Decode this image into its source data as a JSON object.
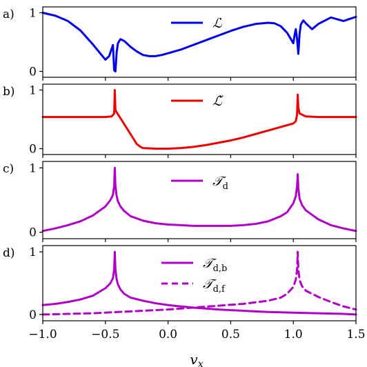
{
  "figure": {
    "xlabel": "v",
    "xlabel_sub": "x",
    "x_ticks": [
      "−1.0",
      "−0.5",
      "0.0",
      "0.5",
      "1.0",
      "1.5"
    ]
  },
  "chart_data": [
    {
      "type": "line",
      "panel_label": "a)",
      "xlim": [
        -1.0,
        1.5
      ],
      "ylim": [
        -0.1,
        1.1
      ],
      "y_ticks": [
        "0",
        "1"
      ],
      "grid": false,
      "legend": "top-center",
      "series": [
        {
          "name": "ℒ",
          "color": "#0000ee",
          "style": "solid",
          "x": [
            -1.0,
            -0.9,
            -0.8,
            -0.7,
            -0.6,
            -0.5,
            -0.47,
            -0.44,
            -0.43,
            -0.42,
            -0.41,
            -0.4,
            -0.38,
            -0.35,
            -0.3,
            -0.25,
            -0.2,
            -0.15,
            -0.1,
            -0.05,
            0.0,
            0.1,
            0.2,
            0.3,
            0.4,
            0.5,
            0.6,
            0.7,
            0.8,
            0.85,
            0.9,
            0.95,
            1.0,
            1.01,
            1.02,
            1.03,
            1.04,
            1.05,
            1.06,
            1.08,
            1.1,
            1.15,
            1.2,
            1.3,
            1.4,
            1.5
          ],
          "y": [
            1.0,
            0.95,
            0.86,
            0.7,
            0.46,
            0.2,
            0.26,
            0.45,
            0.02,
            0.0,
            0.33,
            0.48,
            0.55,
            0.52,
            0.42,
            0.34,
            0.28,
            0.26,
            0.26,
            0.28,
            0.31,
            0.37,
            0.45,
            0.53,
            0.61,
            0.69,
            0.76,
            0.81,
            0.83,
            0.82,
            0.77,
            0.66,
            0.48,
            0.62,
            0.72,
            0.55,
            0.3,
            0.64,
            0.8,
            0.87,
            0.82,
            0.72,
            0.81,
            0.92,
            0.86,
            0.93
          ]
        }
      ]
    },
    {
      "type": "line",
      "panel_label": "b)",
      "xlim": [
        -1.0,
        1.5
      ],
      "ylim": [
        -0.1,
        1.1
      ],
      "y_ticks": [
        "0",
        "1"
      ],
      "grid": false,
      "legend": "top-center",
      "series": [
        {
          "name": "ℒ̃",
          "color": "#ee0000",
          "style": "solid",
          "x": [
            -1.0,
            -0.8,
            -0.6,
            -0.5,
            -0.45,
            -0.43,
            -0.425,
            -0.42,
            -0.41,
            -0.38,
            -0.35,
            -0.3,
            -0.25,
            -0.22,
            -0.2,
            -0.1,
            0.0,
            0.1,
            0.2,
            0.3,
            0.4,
            0.5,
            0.6,
            0.7,
            0.8,
            0.9,
            1.0,
            1.02,
            1.03,
            1.035,
            1.04,
            1.05,
            1.1,
            1.2,
            1.3,
            1.4,
            1.5
          ],
          "y": [
            0.54,
            0.54,
            0.54,
            0.54,
            0.55,
            0.6,
            1.0,
            0.66,
            0.62,
            0.52,
            0.42,
            0.25,
            0.08,
            0.03,
            0.01,
            0.0,
            0.0,
            0.01,
            0.03,
            0.06,
            0.1,
            0.14,
            0.19,
            0.25,
            0.31,
            0.37,
            0.43,
            0.47,
            0.58,
            0.92,
            0.7,
            0.6,
            0.55,
            0.54,
            0.54,
            0.54,
            0.54
          ]
        }
      ]
    },
    {
      "type": "line",
      "panel_label": "c)",
      "xlim": [
        -1.0,
        1.5
      ],
      "ylim": [
        -0.1,
        1.1
      ],
      "y_ticks": [
        "0",
        "1"
      ],
      "grid": false,
      "legend": "top-center",
      "series": [
        {
          "name": "𝒯_d",
          "color": "#b000c8",
          "style": "solid",
          "x": [
            -1.0,
            -0.9,
            -0.8,
            -0.7,
            -0.6,
            -0.5,
            -0.46,
            -0.44,
            -0.43,
            -0.425,
            -0.42,
            -0.41,
            -0.4,
            -0.38,
            -0.35,
            -0.3,
            -0.2,
            -0.1,
            0.0,
            0.1,
            0.2,
            0.3,
            0.4,
            0.5,
            0.6,
            0.7,
            0.8,
            0.9,
            0.95,
            1.0,
            1.02,
            1.03,
            1.035,
            1.04,
            1.05,
            1.07,
            1.1,
            1.2,
            1.3,
            1.4,
            1.5
          ],
          "y": [
            0.02,
            0.06,
            0.11,
            0.17,
            0.26,
            0.4,
            0.5,
            0.58,
            0.72,
            1.0,
            0.72,
            0.56,
            0.48,
            0.4,
            0.33,
            0.25,
            0.18,
            0.14,
            0.12,
            0.11,
            0.1,
            0.1,
            0.1,
            0.1,
            0.11,
            0.13,
            0.17,
            0.25,
            0.31,
            0.45,
            0.56,
            0.72,
            0.9,
            0.68,
            0.52,
            0.42,
            0.34,
            0.2,
            0.11,
            0.06,
            0.02
          ]
        }
      ]
    },
    {
      "type": "line",
      "panel_label": "d)",
      "xlim": [
        -1.0,
        1.5
      ],
      "ylim": [
        -0.1,
        1.1
      ],
      "y_ticks": [
        "0",
        "1"
      ],
      "grid": false,
      "legend": "top-center",
      "series": [
        {
          "name": "𝒯_d,b",
          "color": "#b000c8",
          "style": "solid",
          "x": [
            -1.0,
            -0.9,
            -0.8,
            -0.7,
            -0.6,
            -0.5,
            -0.46,
            -0.44,
            -0.43,
            -0.425,
            -0.42,
            -0.41,
            -0.4,
            -0.38,
            -0.35,
            -0.3,
            -0.2,
            -0.1,
            0.0,
            0.2,
            0.4,
            0.6,
            0.8,
            1.0,
            1.2,
            1.4,
            1.5
          ],
          "y": [
            0.15,
            0.17,
            0.2,
            0.24,
            0.3,
            0.42,
            0.5,
            0.58,
            0.72,
            1.0,
            0.72,
            0.56,
            0.48,
            0.4,
            0.33,
            0.27,
            0.22,
            0.18,
            0.15,
            0.11,
            0.08,
            0.06,
            0.04,
            0.03,
            0.02,
            0.01,
            0.0
          ]
        },
        {
          "name": "𝒯_d,f",
          "color": "#b000c8",
          "style": "dashed",
          "x": [
            -1.0,
            -0.8,
            -0.6,
            -0.4,
            -0.2,
            0.0,
            0.2,
            0.4,
            0.6,
            0.8,
            0.9,
            0.95,
            1.0,
            1.02,
            1.03,
            1.035,
            1.04,
            1.05,
            1.07,
            1.1,
            1.2,
            1.3,
            1.4,
            1.5
          ],
          "y": [
            0.0,
            0.01,
            0.02,
            0.04,
            0.06,
            0.08,
            0.11,
            0.14,
            0.17,
            0.22,
            0.27,
            0.33,
            0.44,
            0.56,
            0.72,
            1.0,
            0.72,
            0.55,
            0.45,
            0.38,
            0.28,
            0.2,
            0.13,
            0.08
          ]
        }
      ]
    }
  ]
}
